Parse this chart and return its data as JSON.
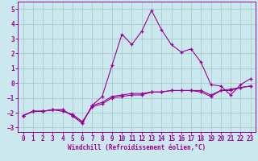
{
  "xlabel": "Windchill (Refroidissement éolien,°C)",
  "x_values": [
    0,
    1,
    2,
    3,
    4,
    5,
    6,
    7,
    8,
    9,
    10,
    11,
    12,
    13,
    14,
    15,
    16,
    17,
    18,
    19,
    20,
    21,
    22,
    23
  ],
  "line1_y": [
    -2.2,
    -1.9,
    -1.9,
    -1.8,
    -1.8,
    -2.2,
    -2.7,
    -1.5,
    -1.3,
    -0.9,
    -0.8,
    -0.7,
    -0.7,
    -0.6,
    -0.6,
    -0.5,
    -0.5,
    -0.5,
    -0.5,
    -0.8,
    -0.5,
    -0.4,
    -0.3,
    -0.2
  ],
  "line2_y": [
    -2.2,
    -1.9,
    -1.9,
    -1.8,
    -1.8,
    -2.2,
    -2.7,
    -1.5,
    -0.9,
    1.2,
    3.3,
    2.6,
    3.5,
    4.9,
    3.6,
    2.6,
    2.1,
    2.3,
    1.4,
    -0.1,
    -0.2,
    -0.8,
    -0.1,
    0.3
  ],
  "line3_y": [
    -2.2,
    -1.9,
    -1.9,
    -1.8,
    -1.9,
    -2.1,
    -2.6,
    -1.6,
    -1.4,
    -1.0,
    -0.9,
    -0.8,
    -0.8,
    -0.6,
    -0.6,
    -0.5,
    -0.5,
    -0.5,
    -0.6,
    -0.9,
    -0.5,
    -0.5,
    -0.3,
    -0.2
  ],
  "color": "#990099",
  "bg_color": "#cce8ef",
  "grid_color": "#aacccc",
  "ylim": [
    -3.3,
    5.5
  ],
  "yticks": [
    -3,
    -2,
    -1,
    0,
    1,
    2,
    3,
    4,
    5
  ],
  "xticks": [
    0,
    1,
    2,
    3,
    4,
    5,
    6,
    7,
    8,
    9,
    10,
    11,
    12,
    13,
    14,
    15,
    16,
    17,
    18,
    19,
    20,
    21,
    22,
    23
  ],
  "tick_fontsize": 5.5,
  "xlabel_fontsize": 5.5
}
